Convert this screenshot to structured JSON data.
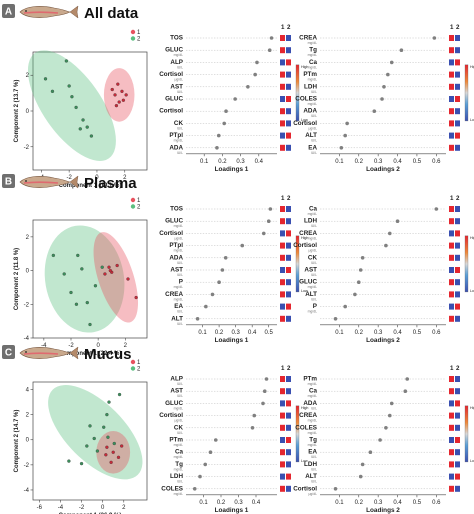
{
  "chart_data": [
    {
      "panel": "A",
      "title": "All data",
      "type": "scatter",
      "legend": [
        "1",
        "2"
      ],
      "xlabel": "Component 1 (19.1 %)",
      "ylabel": "Component 2 (13.7 %)",
      "xlim": [
        -4.6,
        3.6
      ],
      "ylim": [
        -3.3,
        3.3
      ],
      "xticks": [
        -4,
        -2,
        0,
        2
      ],
      "yticks": [
        -2,
        0,
        2
      ],
      "series": [
        {
          "name": "1",
          "color": "#e8525f",
          "points": [
            [
              1.1,
              1.2
            ],
            [
              1.5,
              1.5
            ],
            [
              1.8,
              1.1
            ],
            [
              1.3,
              0.9
            ],
            [
              1.6,
              0.5
            ],
            [
              1.9,
              0.6
            ],
            [
              2.1,
              0.9
            ],
            [
              1.4,
              0.3
            ]
          ],
          "ellipse": {
            "cx": 1.6,
            "cy": 0.9,
            "rx": 1.1,
            "ry": 1.5,
            "angle": 0
          }
        },
        {
          "name": "2",
          "color": "#5cbf80",
          "points": [
            [
              -3.7,
              1.8
            ],
            [
              -2.2,
              2.8
            ],
            [
              -3.2,
              1.1
            ],
            [
              -2.0,
              1.4
            ],
            [
              -1.8,
              0.8
            ],
            [
              -1.5,
              0.2
            ],
            [
              -1.0,
              -0.5
            ],
            [
              -0.7,
              -0.9
            ],
            [
              -0.4,
              -1.4
            ],
            [
              -1.2,
              -1.0
            ]
          ],
          "ellipse": {
            "cx": -1.8,
            "cy": 0.3,
            "rx": 2.1,
            "ry": 3.6,
            "angle": 35
          }
        }
      ]
    },
    {
      "panel": "A-L1",
      "type": "dot",
      "xlabel": "Loadings 1",
      "xlim": [
        0,
        0.5
      ],
      "xticks": [
        0.1,
        0.2,
        0.3,
        0.4
      ],
      "items": [
        {
          "label": "TOS",
          "unit": "",
          "value": 0.47
        },
        {
          "label": "GLUC",
          "unit": "mg/dL",
          "value": 0.46
        },
        {
          "label": "ALP",
          "unit": "IU/L",
          "value": 0.39
        },
        {
          "label": "Cortisol",
          "unit": "μg/dL",
          "value": 0.38
        },
        {
          "label": "AST",
          "unit": "IU/L",
          "value": 0.34
        },
        {
          "label": "GLUC",
          "unit": "",
          "value": 0.27
        },
        {
          "label": "Cortisol",
          "unit": "",
          "value": 0.22
        },
        {
          "label": "CK",
          "unit": "IU/L",
          "value": 0.21
        },
        {
          "label": "PTpl",
          "unit": "mg/dL",
          "value": 0.18
        },
        {
          "label": "ADA",
          "unit": "IU/L",
          "value": 0.17
        }
      ]
    },
    {
      "panel": "A-L2",
      "type": "dot",
      "xlabel": "Loadings 2",
      "xlim": [
        0,
        0.65
      ],
      "xticks": [
        0.1,
        0.2,
        0.3,
        0.4,
        0.5,
        0.6
      ],
      "items": [
        {
          "label": "CREA",
          "unit": "mg/dL",
          "value": 0.59
        },
        {
          "label": "Tg",
          "unit": "mg/dL",
          "value": 0.42
        },
        {
          "label": "Ca",
          "unit": "mg/dL",
          "value": 0.37
        },
        {
          "label": "PTm",
          "unit": "mg/dL",
          "value": 0.35
        },
        {
          "label": "LDH",
          "unit": "IU/L",
          "value": 0.33
        },
        {
          "label": "COLES",
          "unit": "mg/dL",
          "value": 0.32
        },
        {
          "label": "ADA",
          "unit": "IU/L",
          "value": 0.28
        },
        {
          "label": "Cortisol",
          "unit": "μg/dL",
          "value": 0.14
        },
        {
          "label": "ALT",
          "unit": "IU/L",
          "value": 0.13
        },
        {
          "label": "EA",
          "unit": "IU/L",
          "value": 0.11
        }
      ]
    },
    {
      "panel": "B",
      "title": "Plasma",
      "type": "scatter",
      "legend": [
        "1",
        "2"
      ],
      "xlabel": "Component 1 (22.4 %)",
      "ylabel": "Component 2 (11.8 %)",
      "xlim": [
        -4.8,
        3.6
      ],
      "ylim": [
        -4.0,
        3.0
      ],
      "xticks": [
        -4,
        -2,
        0,
        2
      ],
      "yticks": [
        -4,
        -2,
        0,
        2
      ],
      "series": [
        {
          "name": "1",
          "color": "#e8525f",
          "points": [
            [
              0.5,
              -0.2
            ],
            [
              0.8,
              0.2
            ],
            [
              1.0,
              -0.1
            ],
            [
              1.4,
              0.3
            ],
            [
              0.9,
              0.0
            ],
            [
              2.2,
              -0.5
            ],
            [
              2.8,
              -1.6
            ]
          ],
          "ellipse": {
            "cx": 1.3,
            "cy": -0.4,
            "rx": 1.3,
            "ry": 2.8,
            "angle": 18
          }
        },
        {
          "name": "2",
          "color": "#5cbf80",
          "points": [
            [
              -3.3,
              0.9
            ],
            [
              -1.5,
              0.9
            ],
            [
              -1.2,
              0.1
            ],
            [
              -2.5,
              -0.2
            ],
            [
              -2.0,
              -1.3
            ],
            [
              -1.6,
              -2.0
            ],
            [
              -0.8,
              -1.9
            ],
            [
              -0.2,
              -0.9
            ],
            [
              0.3,
              0.2
            ],
            [
              -0.6,
              -3.2
            ]
          ],
          "ellipse": {
            "cx": -1.0,
            "cy": -0.5,
            "rx": 2.9,
            "ry": 3.2,
            "angle": 10
          }
        }
      ]
    },
    {
      "panel": "B-L1",
      "type": "dot",
      "xlabel": "Loadings 1",
      "xlim": [
        0,
        0.55
      ],
      "xticks": [
        0.1,
        0.2,
        0.3,
        0.4,
        0.5
      ],
      "items": [
        {
          "label": "TOS",
          "unit": "",
          "value": 0.51
        },
        {
          "label": "GLUC",
          "unit": "mg/dL",
          "value": 0.5
        },
        {
          "label": "Cortisol",
          "unit": "μg/dL",
          "value": 0.47
        },
        {
          "label": "PTpl",
          "unit": "mg/dL",
          "value": 0.34
        },
        {
          "label": "ADA",
          "unit": "IU/L",
          "value": 0.24
        },
        {
          "label": "AST",
          "unit": "IU/L",
          "value": 0.22
        },
        {
          "label": "P",
          "unit": "mg/dL",
          "value": 0.2
        },
        {
          "label": "CREA",
          "unit": "mg/dL",
          "value": 0.16
        },
        {
          "label": "EA",
          "unit": "IU/L",
          "value": 0.12
        },
        {
          "label": "ALT",
          "unit": "IU/L",
          "value": 0.07
        }
      ]
    },
    {
      "panel": "B-L2",
      "type": "dot",
      "xlabel": "Loadings 2",
      "xlim": [
        0,
        0.65
      ],
      "xticks": [
        0.1,
        0.2,
        0.3,
        0.4,
        0.5,
        0.6
      ],
      "items": [
        {
          "label": "Ca",
          "unit": "mg/dL",
          "value": 0.6
        },
        {
          "label": "LDH",
          "unit": "IU/L",
          "value": 0.4
        },
        {
          "label": "CREA",
          "unit": "mg/dL",
          "value": 0.36
        },
        {
          "label": "Cortisol",
          "unit": "μg/dL",
          "value": 0.34
        },
        {
          "label": "CK",
          "unit": "IU/L",
          "value": 0.22
        },
        {
          "label": "AST",
          "unit": "IU/L",
          "value": 0.21
        },
        {
          "label": "GLUC",
          "unit": "mg/dL",
          "value": 0.2
        },
        {
          "label": "ALT",
          "unit": "IU/L",
          "value": 0.18
        },
        {
          "label": "P",
          "unit": "mg/dL",
          "value": 0.13
        },
        {
          "label": "",
          "unit": "",
          "value": 0.08
        }
      ]
    },
    {
      "panel": "C",
      "title": "Mucus",
      "type": "scatter",
      "legend": [
        "1",
        "2"
      ],
      "xlabel": "Component 1 (36.9 %)",
      "ylabel": "Component 2 (14.7 %)",
      "xlim": [
        -6.6,
        4.2
      ],
      "ylim": [
        -4.8,
        4.6
      ],
      "xticks": [
        -6,
        -4,
        -2,
        0,
        2
      ],
      "yticks": [
        -4,
        -2,
        0,
        2,
        4
      ],
      "series": [
        {
          "name": "1",
          "color": "#e8525f",
          "points": [
            [
              0.3,
              -1.2
            ],
            [
              1.0,
              -1.0
            ],
            [
              1.5,
              -1.4
            ],
            [
              0.8,
              -1.8
            ],
            [
              1.8,
              -0.5
            ],
            [
              0.4,
              -0.6
            ]
          ],
          "ellipse": {
            "cx": 1.0,
            "cy": -1.0,
            "rx": 1.6,
            "ry": 1.7,
            "angle": 0
          }
        },
        {
          "name": "2",
          "color": "#5cbf80",
          "points": [
            [
              -3.2,
              -1.7
            ],
            [
              -2.0,
              -1.9
            ],
            [
              -1.5,
              -0.5
            ],
            [
              -0.8,
              0.1
            ],
            [
              0.1,
              1.0
            ],
            [
              0.4,
              2.0
            ],
            [
              0.6,
              3.0
            ],
            [
              0.5,
              0.2
            ],
            [
              1.1,
              -0.3
            ],
            [
              -0.5,
              -0.9
            ],
            [
              1.6,
              3.6
            ],
            [
              -1.2,
              1.1
            ]
          ],
          "ellipse": {
            "cx": -0.7,
            "cy": 0.6,
            "rx": 5.7,
            "ry": 2.3,
            "angle": -45
          }
        }
      ]
    },
    {
      "panel": "C-L1",
      "type": "dot",
      "xlabel": "Loadings 1",
      "xlim": [
        0,
        0.52
      ],
      "xticks": [
        0.1,
        0.2,
        0.3,
        0.4
      ],
      "items": [
        {
          "label": "ALP",
          "unit": "IU/L",
          "value": 0.46
        },
        {
          "label": "AST",
          "unit": "IU/L",
          "value": 0.45
        },
        {
          "label": "GLUC",
          "unit": "mg/dL",
          "value": 0.44
        },
        {
          "label": "Cortisol",
          "unit": "μg/dL",
          "value": 0.39
        },
        {
          "label": "CK",
          "unit": "IU/L",
          "value": 0.38
        },
        {
          "label": "PTm",
          "unit": "mg/dL",
          "value": 0.17
        },
        {
          "label": "Ca",
          "unit": "mg/dL",
          "value": 0.14
        },
        {
          "label": "Tg",
          "unit": "mg/dL",
          "value": 0.11
        },
        {
          "label": "LDH",
          "unit": "IU/L",
          "value": 0.08
        },
        {
          "label": "COLES",
          "unit": "mg/dL",
          "value": 0.05
        }
      ]
    },
    {
      "panel": "C-L2",
      "type": "dot",
      "xlabel": "Loadings 2",
      "xlim": [
        0,
        0.65
      ],
      "xticks": [
        0.1,
        0.2,
        0.3,
        0.4,
        0.5,
        0.6
      ],
      "items": [
        {
          "label": "PTm",
          "unit": "mg/dL",
          "value": 0.45
        },
        {
          "label": "Ca",
          "unit": "mg/dL",
          "value": 0.44
        },
        {
          "label": "ADA",
          "unit": "IU/L",
          "value": 0.37
        },
        {
          "label": "CREA",
          "unit": "mg/dL",
          "value": 0.36
        },
        {
          "label": "COLES",
          "unit": "mg/dL",
          "value": 0.34
        },
        {
          "label": "Tg",
          "unit": "mg/dL",
          "value": 0.31
        },
        {
          "label": "EA",
          "unit": "IU/L",
          "value": 0.26
        },
        {
          "label": "LDH",
          "unit": "IU/L",
          "value": 0.22
        },
        {
          "label": "ALT",
          "unit": "IU/L",
          "value": 0.21
        },
        {
          "label": "Cortisol",
          "unit": "μg/dL",
          "value": 0.08
        }
      ]
    }
  ],
  "heat_labels": {
    "high": "High",
    "low": "Low"
  },
  "group_header": [
    "1",
    "2"
  ],
  "colors": {
    "group1": "#e8525f",
    "group2": "#5cbf80",
    "high": "#e4262f",
    "low": "#3a4fb0",
    "dot": "#808080"
  }
}
